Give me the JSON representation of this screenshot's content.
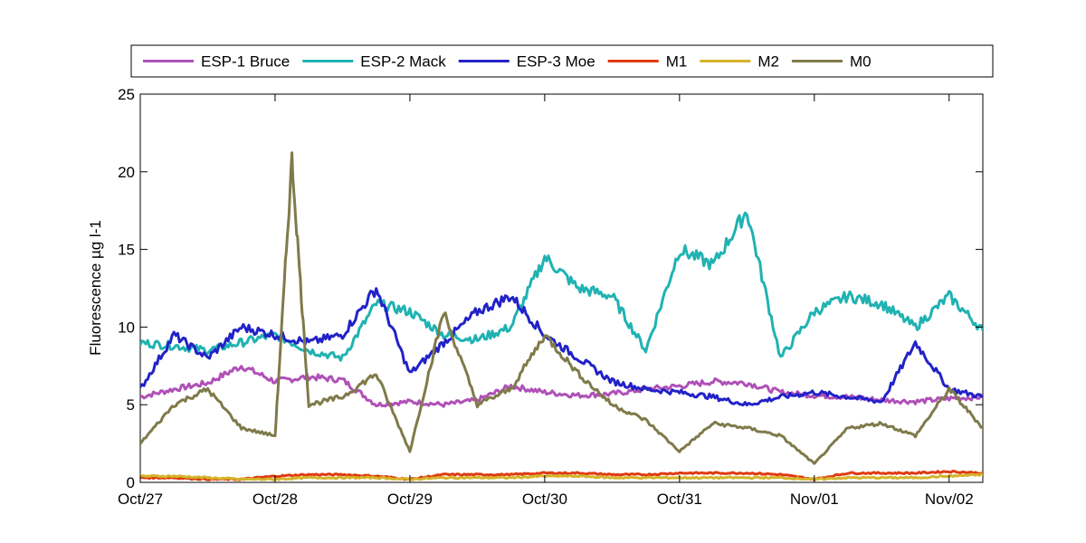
{
  "chart_data": {
    "type": "line",
    "title": "",
    "xlabel": "",
    "ylabel": "Fluorescence µg l-1",
    "ylim": [
      0,
      25
    ],
    "yticks": [
      "0",
      "5",
      "10",
      "15",
      "20",
      "25"
    ],
    "xlim": [
      "Oct/27",
      "Nov/02 06:00"
    ],
    "xticks": [
      "Oct/27",
      "Oct/28",
      "Oct/29",
      "Oct/30",
      "Oct/31",
      "Nov/01",
      "Nov/02"
    ],
    "grid": false,
    "legend_position": "top",
    "series": [
      {
        "name": "ESP-1 Bruce",
        "color": "#b050b8",
        "x": [
          "Oct/27 00:00",
          "Oct/27 06:00",
          "Oct/27 12:00",
          "Oct/27 18:00",
          "Oct/28 00:00",
          "Oct/28 06:00",
          "Oct/28 12:00",
          "Oct/28 18:00",
          "Oct/29 00:00",
          "Oct/29 06:00",
          "Oct/29 12:00",
          "Oct/29 18:00",
          "Oct/30 00:00",
          "Oct/30 06:00",
          "Oct/30 12:00",
          "Oct/30 18:00",
          "Oct/31 00:00",
          "Oct/31 06:00",
          "Oct/31 12:00",
          "Oct/31 18:00",
          "Nov/01 00:00",
          "Nov/01 06:00",
          "Nov/01 12:00",
          "Nov/01 18:00",
          "Nov/02 00:00",
          "Nov/02 06:00"
        ],
        "y": [
          5.5,
          6.0,
          6.4,
          7.5,
          6.5,
          6.8,
          6.6,
          5.0,
          5.2,
          5.0,
          5.3,
          6.2,
          5.8,
          5.6,
          5.7,
          6.0,
          6.2,
          6.5,
          6.4,
          5.8,
          5.6,
          5.5,
          5.3,
          5.2,
          5.4,
          5.5
        ]
      },
      {
        "name": "ESP-2 Mack",
        "color": "#20b2b2",
        "x": [
          "Oct/27 00:00",
          "Oct/27 06:00",
          "Oct/27 12:00",
          "Oct/27 18:00",
          "Oct/28 00:00",
          "Oct/28 06:00",
          "Oct/28 12:00",
          "Oct/28 18:00",
          "Oct/29 00:00",
          "Oct/29 06:00",
          "Oct/29 12:00",
          "Oct/29 18:00",
          "Oct/30 00:00",
          "Oct/30 06:00",
          "Oct/30 12:00",
          "Oct/30 18:00",
          "Oct/31 00:00",
          "Oct/31 06:00",
          "Oct/31 12:00",
          "Oct/31 18:00",
          "Nov/01 00:00",
          "Nov/01 06:00",
          "Nov/01 12:00",
          "Nov/01 18:00",
          "Nov/02 00:00",
          "Nov/02 06:00"
        ],
        "y": [
          9.0,
          8.8,
          8.5,
          9.0,
          9.5,
          8.5,
          8.0,
          11.5,
          11.0,
          9.5,
          9.2,
          10.0,
          14.5,
          12.5,
          12.0,
          8.5,
          15.0,
          14.0,
          17.5,
          8.0,
          11.0,
          12.0,
          11.5,
          10.0,
          12.0,
          9.8
        ]
      },
      {
        "name": "ESP-3 Moe",
        "color": "#2222c8",
        "x": [
          "Oct/27 00:00",
          "Oct/27 06:00",
          "Oct/27 12:00",
          "Oct/27 18:00",
          "Oct/28 00:00",
          "Oct/28 06:00",
          "Oct/28 12:00",
          "Oct/28 18:00",
          "Oct/29 00:00",
          "Oct/29 06:00",
          "Oct/29 12:00",
          "Oct/29 18:00",
          "Oct/30 00:00",
          "Oct/30 06:00",
          "Oct/30 12:00",
          "Oct/30 18:00",
          "Oct/31 00:00",
          "Oct/31 06:00",
          "Oct/31 12:00",
          "Oct/31 18:00",
          "Nov/01 00:00",
          "Nov/01 06:00",
          "Nov/01 12:00",
          "Nov/01 18:00",
          "Nov/02 00:00",
          "Nov/02 06:00"
        ],
        "y": [
          6.0,
          9.5,
          8.0,
          10.0,
          9.5,
          9.0,
          9.5,
          12.5,
          7.0,
          9.0,
          11.0,
          12.0,
          9.5,
          8.0,
          6.5,
          6.0,
          5.8,
          5.5,
          5.0,
          5.5,
          5.8,
          5.5,
          5.2,
          9.0,
          6.0,
          5.5
        ]
      },
      {
        "name": "M1",
        "color": "#e03a10",
        "x": [
          "Oct/27 00:00",
          "Oct/27 06:00",
          "Oct/27 12:00",
          "Oct/27 18:00",
          "Oct/28 00:00",
          "Oct/28 06:00",
          "Oct/28 12:00",
          "Oct/28 18:00",
          "Oct/29 00:00",
          "Oct/29 06:00",
          "Oct/29 12:00",
          "Oct/29 18:00",
          "Oct/30 00:00",
          "Oct/30 06:00",
          "Oct/30 12:00",
          "Oct/30 18:00",
          "Oct/31 00:00",
          "Oct/31 06:00",
          "Oct/31 12:00",
          "Oct/31 18:00",
          "Nov/01 00:00",
          "Nov/01 06:00",
          "Nov/01 12:00",
          "Nov/01 18:00",
          "Nov/02 00:00",
          "Nov/02 06:00"
        ],
        "y": [
          0.3,
          0.3,
          0.2,
          0.2,
          0.4,
          0.5,
          0.5,
          0.4,
          0.2,
          0.5,
          0.5,
          0.5,
          0.6,
          0.6,
          0.5,
          0.5,
          0.6,
          0.6,
          0.6,
          0.5,
          0.2,
          0.6,
          0.6,
          0.6,
          0.7,
          0.6
        ]
      },
      {
        "name": "M2",
        "color": "#d4b42a",
        "x": [
          "Oct/27 00:00",
          "Oct/27 06:00",
          "Oct/27 12:00",
          "Oct/27 18:00",
          "Oct/28 00:00",
          "Oct/28 06:00",
          "Oct/28 12:00",
          "Oct/28 18:00",
          "Oct/29 00:00",
          "Oct/29 06:00",
          "Oct/29 12:00",
          "Oct/29 18:00",
          "Oct/30 00:00",
          "Oct/30 06:00",
          "Oct/30 12:00",
          "Oct/30 18:00",
          "Oct/31 00:00",
          "Oct/31 06:00",
          "Oct/31 12:00",
          "Oct/31 18:00",
          "Nov/01 00:00",
          "Nov/01 06:00",
          "Nov/01 12:00",
          "Nov/01 18:00",
          "Nov/02 00:00",
          "Nov/02 06:00"
        ],
        "y": [
          0.4,
          0.4,
          0.3,
          0.2,
          0.2,
          0.3,
          0.3,
          0.3,
          0.2,
          0.3,
          0.3,
          0.3,
          0.4,
          0.4,
          0.3,
          0.3,
          0.3,
          0.3,
          0.3,
          0.3,
          0.2,
          0.3,
          0.3,
          0.3,
          0.4,
          0.5
        ]
      },
      {
        "name": "M0",
        "color": "#7f7a4a",
        "x": [
          "Oct/27 00:00",
          "Oct/27 06:00",
          "Oct/27 12:00",
          "Oct/27 18:00",
          "Oct/28 00:00",
          "Oct/28 03:00",
          "Oct/28 06:00",
          "Oct/28 12:00",
          "Oct/28 18:00",
          "Oct/29 00:00",
          "Oct/29 06:00",
          "Oct/29 12:00",
          "Oct/29 18:00",
          "Oct/30 00:00",
          "Oct/30 06:00",
          "Oct/30 12:00",
          "Oct/30 18:00",
          "Oct/31 00:00",
          "Oct/31 06:00",
          "Oct/31 12:00",
          "Oct/31 18:00",
          "Nov/01 00:00",
          "Nov/01 06:00",
          "Nov/01 12:00",
          "Nov/01 18:00",
          "Nov/02 00:00",
          "Nov/02 06:00"
        ],
        "y": [
          2.5,
          5.0,
          6.0,
          3.5,
          3.0,
          20.8,
          5.0,
          5.5,
          7.0,
          2.0,
          11.0,
          5.0,
          6.0,
          9.5,
          7.0,
          5.0,
          4.0,
          2.0,
          3.8,
          3.5,
          3.0,
          1.2,
          3.5,
          3.8,
          3.0,
          6.0,
          3.5
        ]
      }
    ]
  }
}
